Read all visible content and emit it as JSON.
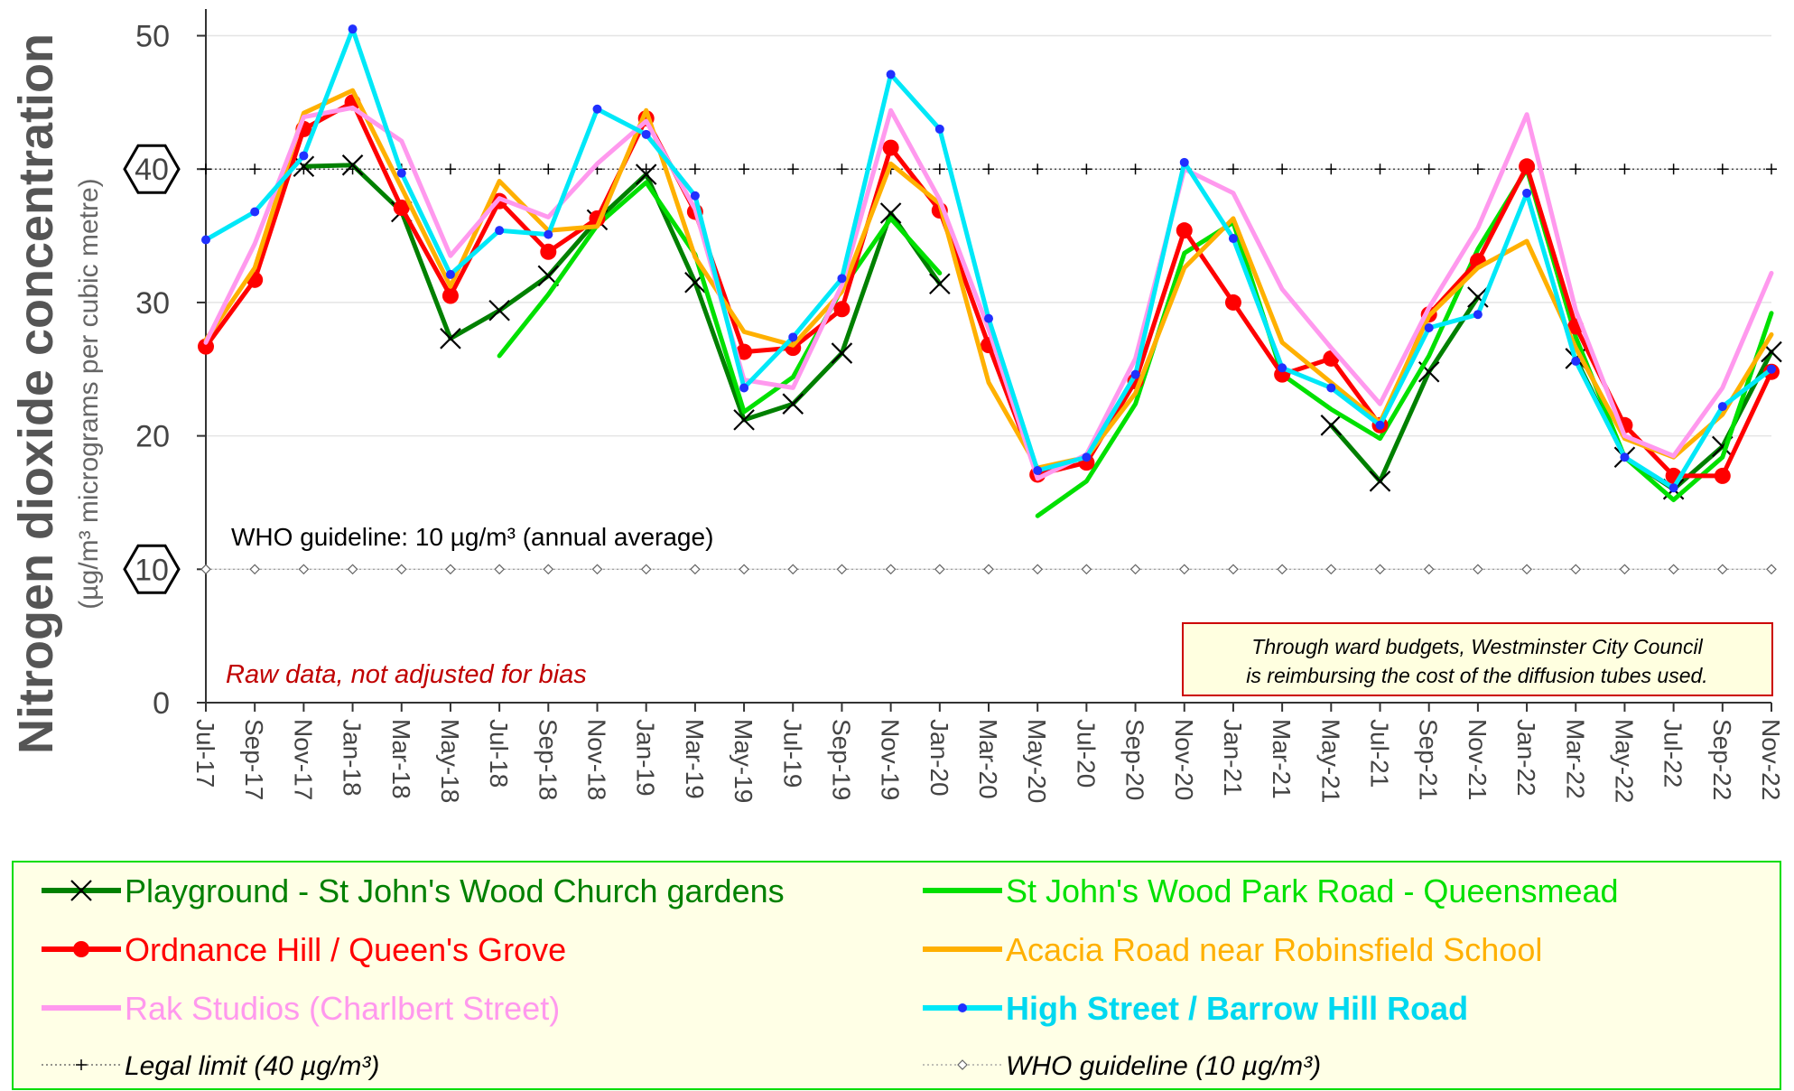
{
  "chart_data": {
    "type": "line",
    "ylabel": "Nitrogen dioxide concentration",
    "ylabel_sub": "(µg/m³ micrograms per cubic metre)",
    "ylim": [
      0,
      52
    ],
    "yticks": [
      0,
      10,
      20,
      30,
      40,
      50
    ],
    "grid": true,
    "legend_position": "bottom",
    "categories": [
      "Jul-17",
      "Sep-17",
      "Nov-17",
      "Jan-18",
      "Mar-18",
      "May-18",
      "Jul-18",
      "Sep-18",
      "Nov-18",
      "Jan-19",
      "Mar-19",
      "May-19",
      "Jul-19",
      "Sep-19",
      "Nov-19",
      "Jan-20",
      "Mar-20",
      "May-20",
      "Jul-20",
      "Sep-20",
      "Nov-20",
      "Jan-21",
      "Mar-21",
      "May-21",
      "Jul-21",
      "Sep-21",
      "Nov-21",
      "Jan-22",
      "Mar-22",
      "May-22",
      "Jul-22",
      "Sep-22",
      "Nov-22"
    ],
    "annotations": {
      "who_text": "WHO guideline: 10 µg/m³ (annual average)",
      "raw_text": "Raw data, not adjusted for bias",
      "box_line1": "Through ward budgets, Westminster City Council",
      "box_line2": "is reimbursing the cost of the diffusion tubes used.",
      "legal_badge": "40",
      "who_badge": "10"
    },
    "reference_lines": [
      {
        "name": "Legal limit  (40 µg/m³)",
        "value": 40,
        "color": "#000000"
      },
      {
        "name": "WHO guideline  (10 µg/m³)",
        "value": 10,
        "color": "#888888"
      }
    ],
    "series": [
      {
        "name": "Playground - St John's Wood Church gardens",
        "color": "#008000",
        "marker": "x",
        "values": [
          null,
          null,
          40.2,
          40.3,
          36.8,
          27.3,
          29.4,
          32.0,
          36.2,
          39.6,
          31.5,
          21.2,
          22.4,
          26.2,
          36.7,
          31.4,
          null,
          null,
          null,
          null,
          null,
          null,
          null,
          20.8,
          16.6,
          24.8,
          30.4,
          null,
          25.8,
          18.4,
          16.0,
          19.2,
          26.3
        ]
      },
      {
        "name": "St John's Wood Park Road - Queensmead",
        "color": "#00e000",
        "marker": "none",
        "values": [
          null,
          null,
          null,
          null,
          null,
          null,
          26.0,
          30.6,
          35.8,
          39.0,
          33.6,
          21.8,
          24.4,
          31.0,
          36.3,
          32.2,
          null,
          14.0,
          16.6,
          22.4,
          33.7,
          36.0,
          24.6,
          22.0,
          19.8,
          26.0,
          34.0,
          40.0,
          27.4,
          18.4,
          15.2,
          18.4,
          29.2
        ]
      },
      {
        "name": "Ordnance Hill / Queen's Grove",
        "color": "#ff0000",
        "marker": "dot",
        "values": [
          26.7,
          31.7,
          43.0,
          45.0,
          37.1,
          30.5,
          37.6,
          33.8,
          36.3,
          43.8,
          36.8,
          26.3,
          26.6,
          29.5,
          41.6,
          36.9,
          26.8,
          17.1,
          18.0,
          24.1,
          35.4,
          30.0,
          24.6,
          25.8,
          20.8,
          29.1,
          33.1,
          40.2,
          28.2,
          20.8,
          17.0,
          17.0,
          24.8
        ]
      },
      {
        "name": "Acacia Road near Robinsfield School",
        "color": "#ffb000",
        "marker": "none",
        "values": [
          27.2,
          32.6,
          44.2,
          45.9,
          38.6,
          31.2,
          39.1,
          35.4,
          35.7,
          44.4,
          33.4,
          27.8,
          26.8,
          30.8,
          40.4,
          37.4,
          24.0,
          17.6,
          18.4,
          23.2,
          32.6,
          36.3,
          27.0,
          24.0,
          21.0,
          29.0,
          32.6,
          34.6,
          26.6,
          19.8,
          18.4,
          21.6,
          27.6
        ]
      },
      {
        "name": "Rak Studios (Charlbert Street)",
        "color": "#ff99ee",
        "marker": "none",
        "values": [
          27.0,
          34.4,
          43.9,
          44.6,
          42.1,
          33.5,
          37.8,
          36.4,
          40.4,
          43.6,
          37.0,
          24.2,
          23.6,
          31.3,
          44.4,
          37.7,
          28.0,
          16.8,
          18.6,
          25.8,
          40.0,
          38.2,
          31.0,
          26.6,
          22.4,
          29.6,
          35.6,
          44.1,
          29.4,
          20.0,
          18.5,
          23.6,
          32.2
        ]
      },
      {
        "name": "High Street / Barrow Hill Road",
        "color": "#00e8f8",
        "marker": "smalldot",
        "values": [
          34.7,
          36.8,
          41.0,
          50.5,
          39.7,
          32.1,
          35.4,
          35.1,
          44.5,
          42.6,
          38.0,
          23.6,
          27.4,
          31.8,
          47.1,
          43.0,
          28.8,
          17.4,
          18.4,
          24.6,
          40.5,
          34.8,
          25.1,
          23.6,
          20.8,
          28.1,
          29.1,
          38.2,
          25.6,
          18.4,
          16.1,
          22.2,
          25.0
        ]
      }
    ]
  }
}
